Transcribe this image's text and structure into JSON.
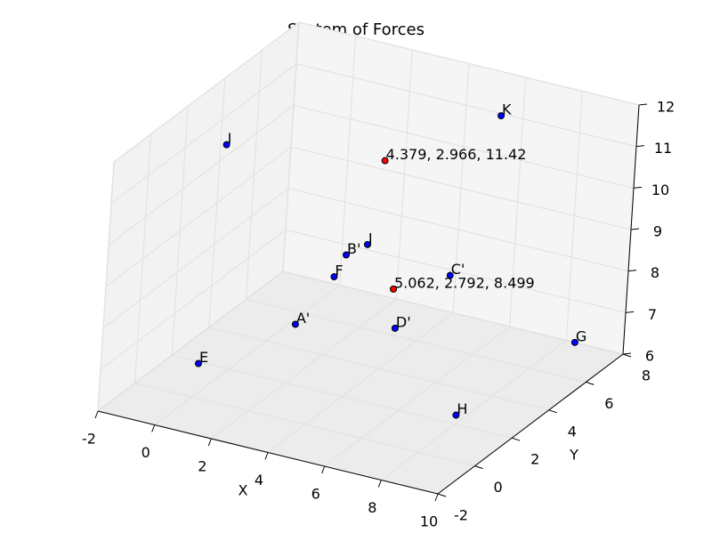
{
  "chart_data": {
    "type": "scatter3d",
    "title": "System of Forces",
    "xlabel": "X",
    "ylabel": "Y",
    "xlim": [
      -2,
      10
    ],
    "xticks": [
      -2,
      0,
      2,
      4,
      6,
      8,
      10
    ],
    "ylim": [
      -2,
      8
    ],
    "yticks": [
      -2,
      0,
      2,
      4,
      6,
      8
    ],
    "zlim": [
      6,
      12
    ],
    "zticks": [
      6,
      7,
      8,
      9,
      10,
      11,
      12
    ],
    "grid": true,
    "points": [
      {
        "label": "E",
        "x": -1,
        "y": 1.9,
        "z": 6,
        "color": "#0000ff"
      },
      {
        "label": "A'",
        "x": 0.2,
        "y": 5.3,
        "z": 6,
        "color": "#0000ff"
      },
      {
        "label": "D'",
        "x": 3,
        "y": 6.4,
        "z": 6,
        "color": "#0000ff"
      },
      {
        "label": "H",
        "x": 7.7,
        "y": 2.5,
        "z": 6,
        "color": "#0000ff"
      },
      {
        "label": "G",
        "x": 8.3,
        "y": 8,
        "z": 6,
        "color": "#0000ff"
      },
      {
        "label": "F",
        "x": 0.95,
        "y": 6.1,
        "z": 7,
        "color": "#0000ff"
      },
      {
        "label": "B'",
        "x": 1.2,
        "y": 6.3,
        "z": 7.5,
        "color": "#0000ff"
      },
      {
        "label": "J",
        "x": 2.1,
        "y": 6,
        "z": 8,
        "color": "#0000ff"
      },
      {
        "label": "C'",
        "x": 4,
        "y": 7.7,
        "z": 7,
        "color": "#0000ff"
      },
      {
        "label": "I",
        "x": -1,
        "y": 2.7,
        "z": 11,
        "color": "#0000ff"
      },
      {
        "label": "K",
        "x": 6.7,
        "y": 5.6,
        "z": 12,
        "color": "#0000ff"
      },
      {
        "label": "4.379, 2.966, 11.42",
        "x": 4.379,
        "y": 2.966,
        "z": 11.42,
        "color": "#ff0000"
      },
      {
        "label": "5.062, 2.792, 8.499",
        "x": 5.062,
        "y": 2.792,
        "z": 8.499,
        "color": "#ff0000"
      }
    ]
  }
}
